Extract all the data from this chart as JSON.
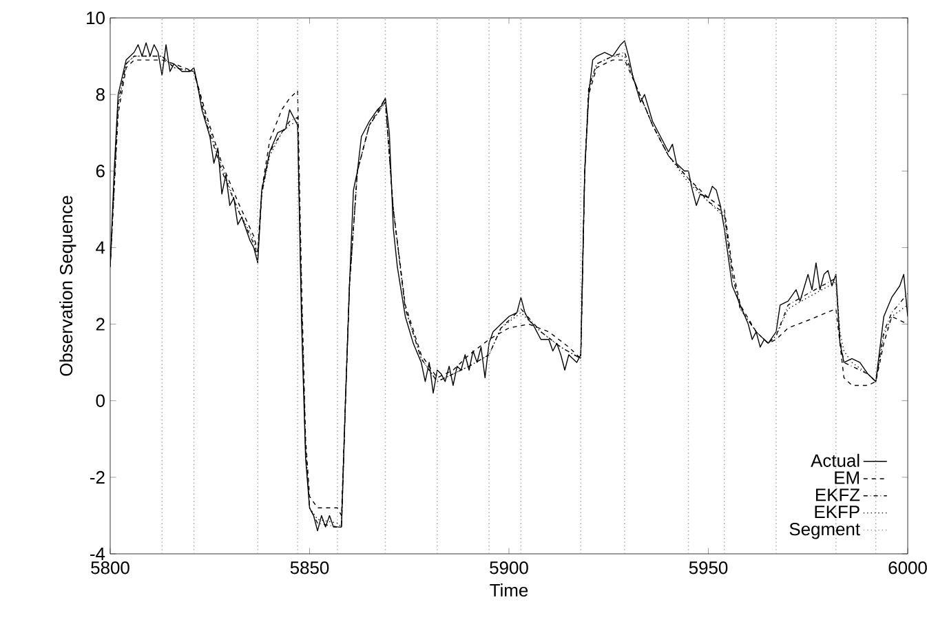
{
  "chart_data": {
    "type": "line",
    "xlabel": "Time",
    "ylabel": "Observation Sequence",
    "xlim": [
      5800,
      6000
    ],
    "ylim": [
      -4,
      10
    ],
    "xticks": [
      5800,
      5850,
      5900,
      5950,
      6000
    ],
    "yticks": [
      -4,
      -2,
      0,
      2,
      4,
      6,
      8,
      10
    ],
    "legend": "bottom right",
    "grid": false,
    "series": [
      {
        "name": "Actual",
        "color": "#000000",
        "line_style": "solid",
        "x": [
          5800,
          5801,
          5802,
          5804,
          5806,
          5807,
          5808,
          5809,
          5810,
          5811,
          5812,
          5813,
          5814,
          5815,
          5816,
          5818,
          5820,
          5821,
          5822,
          5823,
          5825,
          5826,
          5827,
          5828,
          5829,
          5830,
          5831,
          5832,
          5833,
          5835,
          5836,
          5837,
          5838,
          5840,
          5842,
          5844,
          5845,
          5846,
          5847,
          5848,
          5849,
          5850,
          5851,
          5852,
          5853,
          5854,
          5855,
          5856,
          5857,
          5858,
          5859,
          5860,
          5861,
          5862,
          5863,
          5865,
          5867,
          5868,
          5869,
          5870,
          5871,
          5872,
          5874,
          5876,
          5878,
          5879,
          5880,
          5881,
          5882,
          5883,
          5884,
          5885,
          5886,
          5887,
          5888,
          5889,
          5890,
          5891,
          5892,
          5893,
          5894,
          5895,
          5896,
          5898,
          5900,
          5902,
          5903,
          5904,
          5905,
          5906,
          5908,
          5910,
          5911,
          5912,
          5913,
          5914,
          5915,
          5917,
          5918,
          5919,
          5920,
          5921,
          5922,
          5924,
          5926,
          5928,
          5929,
          5930,
          5931,
          5933,
          5934,
          5936,
          5938,
          5940,
          5941,
          5942,
          5944,
          5945,
          5946,
          5947,
          5948,
          5950,
          5951,
          5952,
          5953,
          5954,
          5956,
          5958,
          5960,
          5961,
          5962,
          5963,
          5964,
          5965,
          5967,
          5968,
          5970,
          5972,
          5973,
          5975,
          5976,
          5977,
          5978,
          5979,
          5980,
          5981,
          5982,
          5983,
          5984,
          5986,
          5988,
          5990,
          5992,
          5994,
          5996,
          5998,
          5999,
          6000
        ],
        "values": [
          3.5,
          6,
          8,
          8.9,
          9.1,
          9.3,
          9.0,
          9.35,
          9.0,
          9.3,
          9.1,
          8.5,
          9.3,
          8.6,
          8.8,
          8.6,
          8.6,
          8.7,
          8.2,
          7.6,
          6.9,
          6.2,
          6.6,
          5.4,
          5.9,
          5.1,
          5.3,
          4.6,
          4.8,
          4.2,
          4.0,
          3.6,
          5.5,
          6.5,
          7.0,
          7.1,
          7.6,
          7.4,
          7.2,
          2.0,
          -1.5,
          -2.8,
          -3.0,
          -3.4,
          -3.0,
          -3.3,
          -3.0,
          -3.3,
          -3.3,
          -3.3,
          0,
          3.0,
          5.5,
          6.0,
          6.9,
          7.3,
          7.6,
          7.7,
          7.9,
          7.0,
          4.5,
          3.5,
          2.2,
          1.5,
          1.0,
          0.5,
          1.0,
          0.2,
          0.8,
          0.7,
          0.5,
          0.9,
          0.4,
          0.9,
          0.8,
          1.2,
          0.8,
          1.3,
          1.0,
          1.4,
          0.6,
          1.5,
          1.8,
          2.0,
          2.2,
          2.3,
          2.7,
          2.3,
          2.1,
          2.0,
          1.6,
          1.6,
          1.3,
          1.5,
          1.2,
          0.8,
          1.2,
          1.0,
          1.2,
          6.0,
          8.0,
          8.9,
          9.0,
          9.1,
          9.0,
          9.3,
          9.4,
          9.0,
          8.5,
          7.8,
          8.0,
          7.3,
          6.9,
          6.5,
          6.7,
          6.2,
          6.0,
          6.0,
          5.5,
          5.1,
          5.4,
          5.3,
          5.6,
          5.5,
          5.1,
          4.5,
          3.0,
          2.5,
          2.0,
          1.6,
          1.8,
          1.4,
          1.6,
          1.5,
          1.8,
          2.5,
          2.6,
          2.9,
          2.6,
          3.3,
          2.9,
          3.6,
          2.9,
          3.3,
          3.4,
          3.0,
          3.3,
          1.5,
          1.0,
          1.1,
          1.0,
          0.7,
          0.5,
          2.2,
          2.7,
          3.0,
          3.3,
          2.2
        ]
      },
      {
        "name": "EM",
        "color": "#000000",
        "line_style": "dashed",
        "x": [
          5800,
          5802,
          5804,
          5806,
          5813,
          5816,
          5821,
          5824,
          5828,
          5832,
          5836,
          5837,
          5838,
          5840,
          5843,
          5845,
          5847,
          5848,
          5849,
          5850,
          5852,
          5857,
          5858,
          5859,
          5860,
          5862,
          5865,
          5869,
          5871,
          5874,
          5878,
          5882,
          5886,
          5890,
          5895,
          5900,
          5905,
          5910,
          5915,
          5918,
          5919,
          5920,
          5922,
          5926,
          5929,
          5932,
          5936,
          5940,
          5945,
          5950,
          5954,
          5956,
          5958,
          5962,
          5965,
          5967,
          5970,
          5975,
          5982,
          5983,
          5984,
          5986,
          5990,
          5992,
          5994,
          5996,
          6000
        ],
        "values": [
          3.5,
          7.5,
          8.7,
          8.9,
          8.9,
          8.8,
          8.6,
          7.5,
          6.2,
          5.2,
          4.3,
          3.9,
          5.5,
          6.8,
          7.6,
          7.9,
          8.1,
          3.0,
          -1.0,
          -2.5,
          -2.8,
          -2.8,
          -3.0,
          0,
          3.0,
          6.0,
          7.2,
          7.9,
          5.0,
          2.5,
          1.2,
          0.6,
          0.8,
          1.2,
          1.6,
          1.9,
          2.0,
          1.8,
          1.4,
          1.1,
          6.0,
          8.0,
          8.7,
          8.9,
          8.9,
          8.2,
          7.2,
          6.4,
          5.8,
          5.3,
          5.0,
          3.5,
          2.5,
          1.8,
          1.5,
          1.6,
          1.9,
          2.1,
          2.4,
          1.5,
          0.6,
          0.4,
          0.4,
          0.5,
          1.5,
          2.2,
          2.0
        ]
      },
      {
        "name": "EKFZ",
        "color": "#000000",
        "line_style": "dashdot",
        "x": [
          5800,
          5802,
          5804,
          5806,
          5813,
          5816,
          5821,
          5824,
          5828,
          5832,
          5836,
          5837,
          5838,
          5840,
          5843,
          5845,
          5847,
          5848,
          5849,
          5850,
          5852,
          5857,
          5858,
          5859,
          5860,
          5862,
          5865,
          5869,
          5871,
          5874,
          5878,
          5882,
          5886,
          5890,
          5895,
          5898,
          5903,
          5908,
          5913,
          5918,
          5919,
          5920,
          5922,
          5926,
          5929,
          5932,
          5936,
          5940,
          5945,
          5950,
          5954,
          5956,
          5958,
          5962,
          5965,
          5967,
          5970,
          5975,
          5982,
          5983,
          5984,
          5986,
          5990,
          5992,
          5994,
          5996,
          6000
        ],
        "values": [
          3.5,
          7.8,
          8.8,
          9.0,
          9.0,
          8.7,
          8.6,
          7.3,
          6.0,
          5.0,
          4.1,
          3.7,
          5.4,
          6.5,
          7.0,
          7.3,
          7.4,
          2.5,
          -1.3,
          -2.8,
          -3.2,
          -3.3,
          -3.3,
          0,
          3.0,
          6.0,
          7.2,
          7.8,
          5.0,
          2.4,
          1.1,
          0.5,
          0.7,
          0.9,
          1.2,
          1.9,
          2.4,
          1.8,
          1.4,
          1.1,
          6.0,
          8.2,
          8.8,
          9.0,
          9.1,
          8.2,
          7.2,
          6.4,
          5.8,
          5.2,
          4.9,
          3.3,
          2.4,
          1.8,
          1.5,
          1.7,
          2.5,
          2.8,
          3.2,
          1.6,
          1.0,
          0.9,
          0.7,
          0.5,
          1.8,
          2.3,
          2.8
        ]
      },
      {
        "name": "EKFP",
        "color": "#000000",
        "line_style": "dotted",
        "x": [
          5800,
          5802,
          5804,
          5806,
          5813,
          5816,
          5821,
          5824,
          5828,
          5832,
          5836,
          5837,
          5838,
          5840,
          5843,
          5845,
          5847,
          5848,
          5849,
          5850,
          5852,
          5857,
          5858,
          5859,
          5860,
          5862,
          5865,
          5869,
          5871,
          5874,
          5878,
          5882,
          5886,
          5890,
          5895,
          5898,
          5903,
          5908,
          5913,
          5918,
          5919,
          5920,
          5922,
          5926,
          5929,
          5932,
          5936,
          5940,
          5945,
          5950,
          5954,
          5956,
          5958,
          5962,
          5965,
          5967,
          5970,
          5975,
          5982,
          5983,
          5984,
          5986,
          5990,
          5992,
          5994,
          5996,
          6000
        ],
        "values": [
          3.5,
          7.7,
          8.8,
          9.0,
          9.0,
          8.7,
          8.6,
          7.4,
          6.1,
          5.0,
          4.2,
          3.8,
          5.4,
          6.4,
          7.0,
          7.2,
          7.3,
          2.5,
          -1.2,
          -2.8,
          -3.1,
          -3.2,
          -3.3,
          0,
          3.0,
          6.0,
          7.2,
          7.8,
          5.0,
          2.4,
          1.1,
          0.5,
          0.7,
          0.9,
          1.2,
          1.9,
          2.3,
          1.8,
          1.4,
          1.1,
          6.0,
          8.1,
          8.8,
          9.0,
          9.0,
          8.2,
          7.2,
          6.4,
          5.7,
          5.2,
          4.8,
          3.3,
          2.4,
          1.8,
          1.5,
          1.7,
          2.4,
          2.7,
          3.1,
          1.8,
          1.3,
          1.0,
          0.7,
          0.5,
          1.7,
          2.2,
          2.5
        ]
      },
      {
        "name": "Segment",
        "color": "#999999",
        "line_style": "dotted",
        "x": [
          5813,
          5813,
          null,
          5821,
          5821,
          null,
          5837,
          5837,
          null,
          5847,
          5847,
          null,
          5857,
          5857,
          null,
          5869,
          5869,
          null,
          5882,
          5882,
          null,
          5895,
          5895,
          null,
          5903,
          5903,
          null,
          5918,
          5918,
          null,
          5929,
          5929,
          null,
          5945,
          5945,
          null,
          5954,
          5954,
          null,
          5967,
          5967,
          null,
          5982,
          5982,
          null,
          5992,
          5992
        ],
        "values": [
          -4,
          10,
          null,
          -4,
          10,
          null,
          -4,
          10,
          null,
          -4,
          10,
          null,
          -4,
          10,
          null,
          -4,
          10,
          null,
          -4,
          10,
          null,
          -4,
          10,
          null,
          -4,
          10,
          null,
          -4,
          10,
          null,
          -4,
          10,
          null,
          -4,
          10,
          null,
          -4,
          10,
          null,
          -4,
          10,
          null,
          -4,
          10,
          null,
          -4,
          10
        ]
      }
    ]
  }
}
